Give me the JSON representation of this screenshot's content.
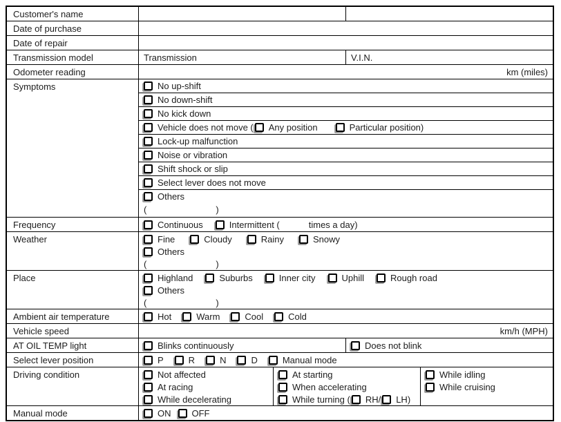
{
  "colors": {
    "border": "#000000",
    "background": "#ffffff",
    "checkbox_shadow": "#9e9e9e"
  },
  "icons": {
    "checkbox": "shadowed-square-checkbox-unchecked"
  },
  "form": {
    "customer_name": {
      "label": "Customer's name"
    },
    "date_of_purchase": {
      "label": "Date of purchase"
    },
    "date_of_repair": {
      "label": "Date of repair"
    },
    "transmission": {
      "label": "Transmission model",
      "model": "Transmission",
      "vin": "V.I.N."
    },
    "odometer": {
      "label": "Odometer reading",
      "unit": "km (miles)"
    },
    "symptoms": {
      "label": "Symptoms",
      "items": [
        "No up-shift",
        "No down-shift",
        "No kick down",
        "Lock-up malfunction",
        "Noise or vibration",
        "Shift shock or slip",
        "Select lever does not move"
      ],
      "vehicle_not_move": {
        "prefix": "Vehicle does not move (",
        "any": "Any position",
        "particular": "Particular position)"
      },
      "others": {
        "label": "Others",
        "open": "(",
        "close": ")"
      }
    },
    "frequency": {
      "label": "Frequency",
      "continuous": "Continuous",
      "intermittent_prefix": "Intermittent (",
      "intermittent_suffix": "times a day)"
    },
    "weather": {
      "label": "Weather",
      "options": [
        "Fine",
        "Cloudy",
        "Rainy",
        "Snowy"
      ],
      "others": "Others",
      "open": "(",
      "close": ")"
    },
    "place": {
      "label": "Place",
      "options": [
        "Highland",
        "Suburbs",
        "Inner city",
        "Uphill",
        "Rough road"
      ],
      "others": "Others",
      "open": "(",
      "close": ")"
    },
    "ambient": {
      "label": "Ambient air temperature",
      "options": [
        "Hot",
        "Warm",
        "Cool",
        "Cold"
      ]
    },
    "vehicle_speed": {
      "label": "Vehicle speed",
      "unit": "km/h (MPH)"
    },
    "at_oil_temp": {
      "label": "AT OIL TEMP light",
      "blinks": "Blinks continuously",
      "no_blink": "Does not blink"
    },
    "select_lever": {
      "label": "Select lever position",
      "options": [
        "P",
        "R",
        "N",
        "D",
        "Manual mode"
      ]
    },
    "driving": {
      "label": "Driving condition",
      "col1": [
        "Not affected",
        "At racing",
        "While decelerating"
      ],
      "col2": [
        "At starting",
        "When accelerating"
      ],
      "turning": {
        "prefix": "While turning (",
        "rh": "RH/",
        "lh": "LH)"
      },
      "col3": [
        "While idling",
        "While cruising"
      ]
    },
    "manual_mode": {
      "label": "Manual mode",
      "on": "ON",
      "off": "OFF"
    }
  }
}
